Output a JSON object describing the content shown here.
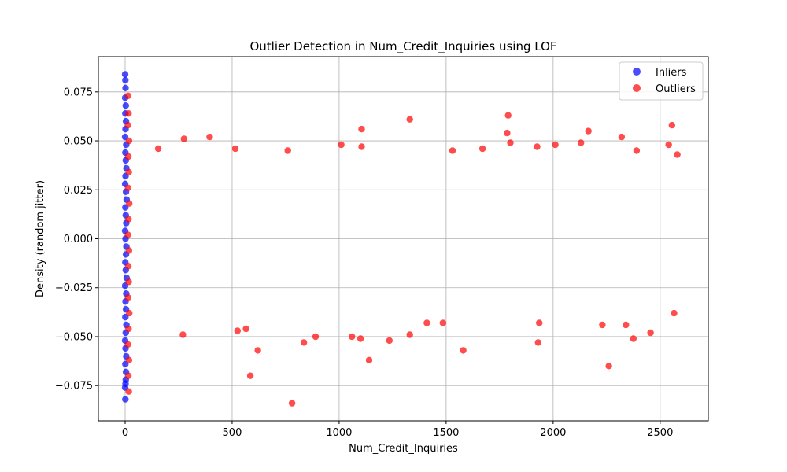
{
  "chart_data": {
    "type": "scatter",
    "title": "Outlier Detection in Num_Credit_Inquiries using LOF",
    "xlabel": "Num_Credit_Inquiries",
    "ylabel": "Density (random jitter)",
    "xlim": [
      -125,
      2725
    ],
    "ylim": [
      -0.093,
      0.093
    ],
    "xticks": [
      0,
      500,
      1000,
      1500,
      2000,
      2500
    ],
    "xtick_labels": [
      "0",
      "500",
      "1000",
      "1500",
      "2000",
      "2500"
    ],
    "yticks": [
      -0.075,
      -0.05,
      -0.025,
      0.0,
      0.025,
      0.05,
      0.075
    ],
    "ytick_labels": [
      "−0.075",
      "−0.050",
      "−0.025",
      "0.000",
      "0.025",
      "0.050",
      "0.075"
    ],
    "grid": true,
    "legend_position": "top-right",
    "series": [
      {
        "name": "Inliers",
        "color": "#0000ff",
        "values": [
          {
            "x": 0,
            "y": 0.084
          },
          {
            "x": 1,
            "y": 0.081
          },
          {
            "x": 2,
            "y": 0.077
          },
          {
            "x": 0,
            "y": 0.072
          },
          {
            "x": 3,
            "y": 0.068
          },
          {
            "x": 1,
            "y": 0.064
          },
          {
            "x": 4,
            "y": 0.06
          },
          {
            "x": 2,
            "y": 0.056
          },
          {
            "x": 0,
            "y": 0.052
          },
          {
            "x": 5,
            "y": 0.048
          },
          {
            "x": 1,
            "y": 0.044
          },
          {
            "x": 3,
            "y": 0.04
          },
          {
            "x": 6,
            "y": 0.036
          },
          {
            "x": 2,
            "y": 0.032
          },
          {
            "x": 0,
            "y": 0.028
          },
          {
            "x": 4,
            "y": 0.024
          },
          {
            "x": 7,
            "y": 0.02
          },
          {
            "x": 1,
            "y": 0.016
          },
          {
            "x": 3,
            "y": 0.012
          },
          {
            "x": 5,
            "y": 0.008
          },
          {
            "x": 0,
            "y": 0.004
          },
          {
            "x": 2,
            "y": 0.0
          },
          {
            "x": 6,
            "y": -0.004
          },
          {
            "x": 4,
            "y": -0.008
          },
          {
            "x": 1,
            "y": -0.012
          },
          {
            "x": 3,
            "y": -0.016
          },
          {
            "x": 7,
            "y": -0.02
          },
          {
            "x": 0,
            "y": -0.024
          },
          {
            "x": 5,
            "y": -0.028
          },
          {
            "x": 2,
            "y": -0.032
          },
          {
            "x": 4,
            "y": -0.036
          },
          {
            "x": 1,
            "y": -0.04
          },
          {
            "x": 6,
            "y": -0.044
          },
          {
            "x": 3,
            "y": -0.048
          },
          {
            "x": 0,
            "y": -0.052
          },
          {
            "x": 2,
            "y": -0.056
          },
          {
            "x": 5,
            "y": -0.06
          },
          {
            "x": 1,
            "y": -0.064
          },
          {
            "x": 4,
            "y": -0.068
          },
          {
            "x": 3,
            "y": -0.072
          },
          {
            "x": 0,
            "y": -0.076
          },
          {
            "x": 2,
            "y": -0.074
          },
          {
            "x": 1,
            "y": -0.082
          }
        ]
      },
      {
        "name": "Outliers",
        "color": "#ff0000",
        "values": [
          {
            "x": 14,
            "y": 0.073
          },
          {
            "x": 16,
            "y": 0.064
          },
          {
            "x": 13,
            "y": 0.058
          },
          {
            "x": 18,
            "y": 0.05
          },
          {
            "x": 15,
            "y": 0.042
          },
          {
            "x": 17,
            "y": 0.034
          },
          {
            "x": 14,
            "y": 0.026
          },
          {
            "x": 19,
            "y": 0.018
          },
          {
            "x": 16,
            "y": 0.01
          },
          {
            "x": 13,
            "y": 0.002
          },
          {
            "x": 18,
            "y": -0.006
          },
          {
            "x": 15,
            "y": -0.014
          },
          {
            "x": 17,
            "y": -0.022
          },
          {
            "x": 14,
            "y": -0.03
          },
          {
            "x": 19,
            "y": -0.038
          },
          {
            "x": 16,
            "y": -0.046
          },
          {
            "x": 13,
            "y": -0.054
          },
          {
            "x": 18,
            "y": -0.062
          },
          {
            "x": 15,
            "y": -0.07
          },
          {
            "x": 17,
            "y": -0.078
          },
          {
            "x": 1790,
            "y": 0.063
          },
          {
            "x": 1330,
            "y": 0.061
          },
          {
            "x": 2555,
            "y": 0.058
          },
          {
            "x": 1105,
            "y": 0.056
          },
          {
            "x": 1785,
            "y": 0.054
          },
          {
            "x": 2165,
            "y": 0.055
          },
          {
            "x": 2320,
            "y": 0.052
          },
          {
            "x": 395,
            "y": 0.052
          },
          {
            "x": 275,
            "y": 0.051
          },
          {
            "x": 2540,
            "y": 0.048
          },
          {
            "x": 2130,
            "y": 0.049
          },
          {
            "x": 1010,
            "y": 0.048
          },
          {
            "x": 1800,
            "y": 0.049
          },
          {
            "x": 1105,
            "y": 0.047
          },
          {
            "x": 1925,
            "y": 0.047
          },
          {
            "x": 2010,
            "y": 0.048
          },
          {
            "x": 760,
            "y": 0.045
          },
          {
            "x": 155,
            "y": 0.046
          },
          {
            "x": 1530,
            "y": 0.045
          },
          {
            "x": 1670,
            "y": 0.046
          },
          {
            "x": 2390,
            "y": 0.045
          },
          {
            "x": 515,
            "y": 0.046
          },
          {
            "x": 2580,
            "y": 0.043
          },
          {
            "x": 620,
            "y": -0.057
          },
          {
            "x": 1580,
            "y": -0.057
          },
          {
            "x": 1140,
            "y": -0.062
          },
          {
            "x": 2260,
            "y": -0.065
          },
          {
            "x": 585,
            "y": -0.07
          },
          {
            "x": 780,
            "y": -0.084
          },
          {
            "x": 835,
            "y": -0.053
          },
          {
            "x": 1930,
            "y": -0.053
          },
          {
            "x": 1235,
            "y": -0.052
          },
          {
            "x": 1100,
            "y": -0.051
          },
          {
            "x": 2375,
            "y": -0.051
          },
          {
            "x": 1330,
            "y": -0.049
          },
          {
            "x": 270,
            "y": -0.049
          },
          {
            "x": 2455,
            "y": -0.048
          },
          {
            "x": 890,
            "y": -0.05
          },
          {
            "x": 1060,
            "y": -0.05
          },
          {
            "x": 525,
            "y": -0.047
          },
          {
            "x": 565,
            "y": -0.046
          },
          {
            "x": 1410,
            "y": -0.043
          },
          {
            "x": 1485,
            "y": -0.043
          },
          {
            "x": 2340,
            "y": -0.044
          },
          {
            "x": 2565,
            "y": -0.038
          },
          {
            "x": 1935,
            "y": -0.043
          },
          {
            "x": 2230,
            "y": -0.044
          }
        ]
      }
    ]
  }
}
